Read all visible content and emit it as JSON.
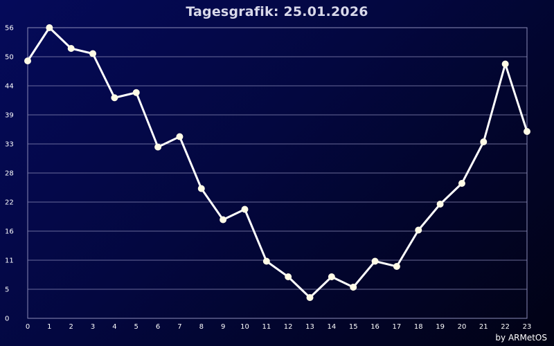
{
  "title": "Tagesgrafik: 25.01.2026",
  "credit": "by ARMetOS",
  "colors": {
    "background_start": "#050a5a",
    "background_end": "#010214",
    "line": "#ffffff",
    "marker": "#fffbe6",
    "grid": "#8c8cb8"
  },
  "chart_data": {
    "type": "line",
    "title": "Tagesgrafik: 25.01.2026",
    "xlabel": "",
    "ylabel": "",
    "x": [
      0,
      1,
      2,
      3,
      4,
      5,
      6,
      7,
      8,
      9,
      10,
      11,
      12,
      13,
      14,
      15,
      16,
      17,
      18,
      19,
      20,
      21,
      22,
      23
    ],
    "x_tick_labels": [
      "0",
      "1",
      "2",
      "3",
      "4",
      "5",
      "6",
      "7",
      "8",
      "9",
      "10",
      "11",
      "12",
      "13",
      "14",
      "15",
      "16",
      "17",
      "18",
      "19",
      "20",
      "21",
      "22",
      "23"
    ],
    "y_tick_labels": [
      "0",
      "5",
      "11",
      "16",
      "22",
      "28",
      "33",
      "39",
      "44",
      "50",
      "56"
    ],
    "y_ticks": [
      0,
      5.6,
      11.2,
      16.8,
      22.4,
      28,
      33.6,
      39.2,
      44.8,
      50.4,
      56
    ],
    "ylim": [
      0,
      56
    ],
    "xlim": [
      0,
      23
    ],
    "grid": true,
    "series": [
      {
        "values": [
          49.6,
          56,
          52,
          51,
          42.5,
          43.5,
          33,
          35,
          25,
          19,
          21,
          11,
          8,
          4,
          8,
          6,
          11,
          10,
          17,
          22,
          26,
          34,
          49,
          36
        ]
      }
    ]
  }
}
